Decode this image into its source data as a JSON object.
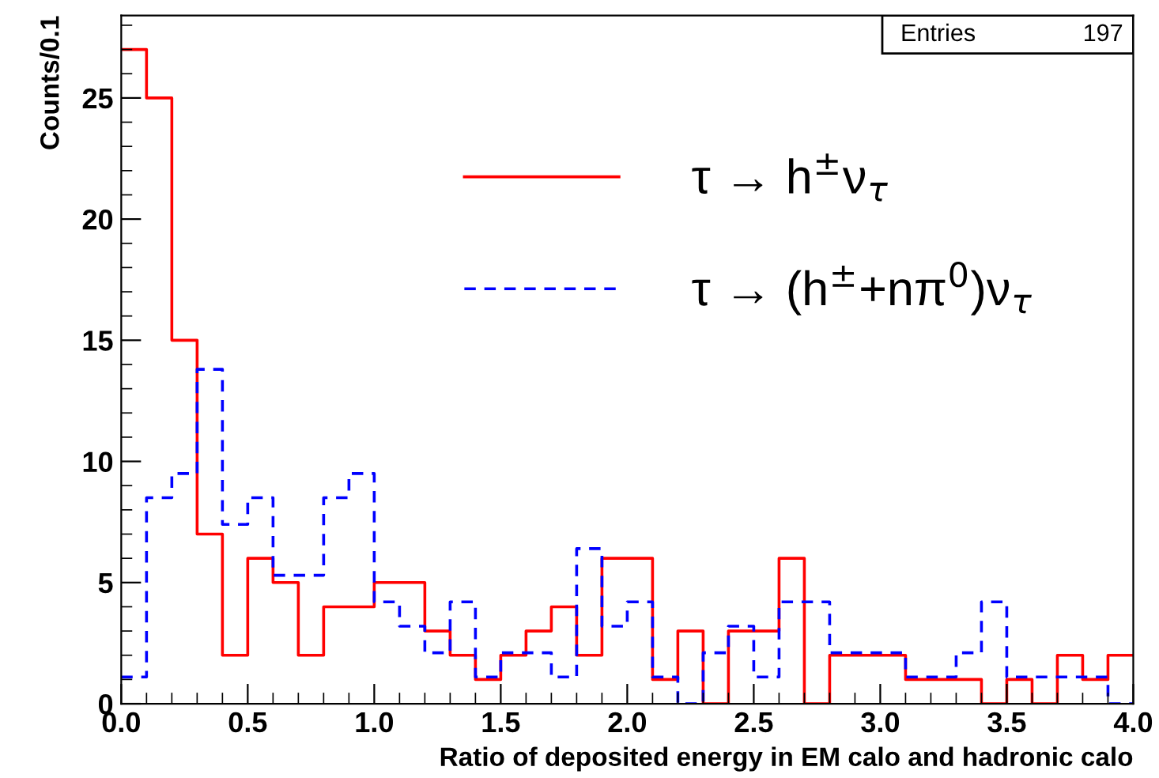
{
  "chart_data": {
    "type": "histogram",
    "xlabel": "Ratio of deposited energy in EM calo and hadronic calo",
    "ylabel": "Counts/0.1",
    "bins": [
      0.0,
      0.1,
      0.2,
      0.3,
      0.4,
      0.5,
      0.6,
      0.7,
      0.8,
      0.9,
      1.0,
      1.1,
      1.2,
      1.3,
      1.4,
      1.5,
      1.6,
      1.7,
      1.8,
      1.9,
      2.0,
      2.1,
      2.2,
      2.3,
      2.4,
      2.5,
      2.6,
      2.7,
      2.8,
      2.9,
      3.0,
      3.1,
      3.2,
      3.3,
      3.4,
      3.5,
      3.6,
      3.7,
      3.8,
      3.9,
      4.0
    ],
    "series": [
      {
        "name": "τ → h$^{±}$ν$_{τ}$",
        "color": "#ff0000",
        "line_style": "solid",
        "values": [
          27,
          25,
          15,
          7,
          2,
          6,
          5,
          2,
          4,
          4,
          5,
          5,
          3,
          2,
          1,
          2,
          3,
          4,
          2,
          6,
          6,
          1,
          3,
          0,
          3,
          3,
          6,
          0,
          2,
          2,
          2,
          1,
          1,
          1,
          0,
          1,
          0,
          2,
          1,
          2
        ]
      },
      {
        "name": "τ → (h$^{±}$+nπ$^{0}$)ν$_{τ}$",
        "color": "#0000ff",
        "line_style": "dashed",
        "values": [
          1.1,
          8.5,
          9.5,
          13.8,
          7.4,
          8.5,
          5.3,
          5.3,
          8.5,
          9.5,
          4.2,
          3.2,
          2.1,
          4.2,
          1.1,
          2.1,
          2.1,
          1.1,
          6.4,
          3.2,
          4.2,
          1.1,
          0,
          2.1,
          3.2,
          1.1,
          4.2,
          4.2,
          2.1,
          2.1,
          2.1,
          1.1,
          1.1,
          2.1,
          4.2,
          1.1,
          1.1,
          1.1,
          1.1,
          0
        ]
      }
    ],
    "xlim": [
      0,
      4
    ],
    "ylim": [
      0,
      28.4
    ],
    "xticks": [
      {
        "value": 0,
        "label": "0.0"
      },
      {
        "value": 0.1,
        "label": null
      },
      {
        "value": 0.2,
        "label": null
      },
      {
        "value": 0.3,
        "label": null
      },
      {
        "value": 0.4,
        "label": null
      },
      {
        "value": 0.5,
        "label": "0.5"
      },
      {
        "value": 0.6,
        "label": null
      },
      {
        "value": 0.7,
        "label": null
      },
      {
        "value": 0.8,
        "label": null
      },
      {
        "value": 0.9,
        "label": null
      },
      {
        "value": 1,
        "label": "1.0"
      },
      {
        "value": 1.1,
        "label": null
      },
      {
        "value": 1.2,
        "label": null
      },
      {
        "value": 1.3,
        "label": null
      },
      {
        "value": 1.4,
        "label": null
      },
      {
        "value": 1.5,
        "label": "1.5"
      },
      {
        "value": 1.6,
        "label": null
      },
      {
        "value": 1.7,
        "label": null
      },
      {
        "value": 1.8,
        "label": null
      },
      {
        "value": 1.9,
        "label": null
      },
      {
        "value": 2,
        "label": "2.0"
      },
      {
        "value": 2.1,
        "label": null
      },
      {
        "value": 2.2,
        "label": null
      },
      {
        "value": 2.3,
        "label": null
      },
      {
        "value": 2.4,
        "label": null
      },
      {
        "value": 2.5,
        "label": "2.5"
      },
      {
        "value": 2.6,
        "label": null
      },
      {
        "value": 2.7,
        "label": null
      },
      {
        "value": 2.8,
        "label": null
      },
      {
        "value": 2.9,
        "label": null
      },
      {
        "value": 3,
        "label": "3.0"
      },
      {
        "value": 3.1,
        "label": null
      },
      {
        "value": 3.2,
        "label": null
      },
      {
        "value": 3.3,
        "label": null
      },
      {
        "value": 3.4,
        "label": null
      },
      {
        "value": 3.5,
        "label": "3.5"
      },
      {
        "value": 3.6,
        "label": null
      },
      {
        "value": 3.7,
        "label": null
      },
      {
        "value": 3.8,
        "label": null
      },
      {
        "value": 3.9,
        "label": null
      },
      {
        "value": 4,
        "label": "4.0"
      }
    ],
    "yticks": [
      0,
      {
        "value": 1,
        "label": null
      },
      {
        "value": 2,
        "label": null
      },
      {
        "value": 3,
        "label": null
      },
      {
        "value": 4,
        "label": null
      },
      5,
      {
        "value": 6,
        "label": null
      },
      {
        "value": 7,
        "label": null
      },
      {
        "value": 8,
        "label": null
      },
      {
        "value": 9,
        "label": null
      },
      10,
      {
        "value": 11,
        "label": null
      },
      {
        "value": 12,
        "label": null
      },
      {
        "value": 13,
        "label": null
      },
      {
        "value": 14,
        "label": null
      },
      15,
      {
        "value": 16,
        "label": null
      },
      {
        "value": 17,
        "label": null
      },
      {
        "value": 18,
        "label": null
      },
      {
        "value": 19,
        "label": null
      },
      20,
      {
        "value": 21,
        "label": null
      },
      {
        "value": 22,
        "label": null
      },
      {
        "value": 23,
        "label": null
      },
      {
        "value": 24,
        "label": null
      },
      25,
      {
        "value": 26,
        "label": null
      },
      {
        "value": 27,
        "label": null
      },
      {
        "value": 28,
        "label": null
      }
    ],
    "legend": "top",
    "grid": false,
    "annotations": [
      "Entries",
      "197"
    ]
  }
}
